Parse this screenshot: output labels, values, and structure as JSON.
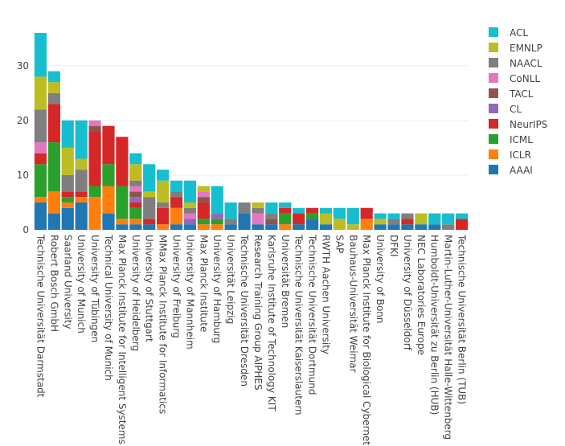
{
  "chart_data": {
    "type": "bar",
    "stacked": true,
    "title": "",
    "xlabel": "",
    "ylabel": "",
    "ylim": [
      0,
      37.9
    ],
    "yticks": [
      0,
      10,
      20,
      30
    ],
    "grid": true,
    "legend_position": "right",
    "categories": [
      "Technische Universität Darmstadt",
      "Robert Bosch GmbH",
      "Saarland University",
      "University of Munich",
      "University of Tübingen",
      "Technical University of Munich",
      "Max Planck Institute for Intelligent Systems",
      "University of Heidelberg",
      "University of Stuttgart",
      "MMax Planck Institute for Informatics",
      "University of Freiburg",
      "University of Mannheim",
      "Max Planck Institute",
      "University of Hamburg",
      "Universität Leipzig",
      "Technische Universität Dresden",
      "Research Training Group AIPHES",
      "Karlsruhe Institute of Technology KIT",
      "Universität Bremen",
      "Technische Universität Kaiserslautern",
      "Technische Universität Dortmund",
      "RWTH Aachen University",
      "SAP",
      "Bauhaus-Universität Weimar",
      "Max Planck Institute for Biological Cybernetics",
      "University of Bonn",
      "DFKI",
      "University of Düsseldorf",
      "NEC Laboratories Europe",
      "Humboldt-Universität zu Berlin (HUB)",
      "Martin-Luther-Universität Halle-Wittenberg",
      "Technische Universität Berlin (TUB)"
    ],
    "series": [
      {
        "name": "AAAI",
        "color": "#1f77b4",
        "values": [
          5,
          3,
          4,
          5,
          0,
          3,
          1,
          1,
          1,
          0,
          1,
          1,
          0,
          0,
          1,
          3,
          1,
          1,
          0,
          1,
          2,
          1,
          0,
          0,
          0,
          1,
          1,
          1,
          1,
          1,
          0,
          0
        ]
      },
      {
        "name": "ICLR",
        "color": "#ff7f0e",
        "values": [
          1,
          4,
          1,
          1,
          6,
          5,
          1,
          1,
          0,
          1,
          3,
          0,
          1,
          1,
          0,
          0,
          0,
          0,
          1,
          0,
          0,
          0,
          0,
          0,
          2,
          0,
          0,
          0,
          0,
          0,
          0,
          0
        ]
      },
      {
        "name": "ICML",
        "color": "#2ca02c",
        "values": [
          6,
          9,
          1,
          0,
          2,
          4,
          6,
          2,
          0,
          0,
          0,
          0,
          1,
          1,
          0,
          0,
          0,
          0,
          2,
          0,
          1,
          0,
          0,
          0,
          0,
          0,
          0,
          0,
          0,
          0,
          0,
          0
        ]
      },
      {
        "name": "NeurIPS",
        "color": "#d62728",
        "values": [
          2,
          7,
          1,
          1,
          10,
          7,
          9,
          1,
          1,
          3,
          2,
          0,
          3,
          0,
          0,
          0,
          0,
          0,
          1,
          2,
          1,
          0,
          0,
          0,
          2,
          0,
          0,
          1,
          0,
          0,
          0,
          2
        ]
      },
      {
        "name": "CL",
        "color": "#9467bd",
        "values": [
          0,
          0,
          0,
          0,
          0,
          0,
          0,
          1,
          0,
          0,
          0,
          1,
          0,
          1,
          0,
          0,
          0,
          0,
          0,
          0,
          0,
          0,
          0,
          0,
          0,
          0,
          0,
          0,
          0,
          0,
          0,
          0
        ]
      },
      {
        "name": "TACL",
        "color": "#8c564b",
        "values": [
          0,
          0,
          0,
          0,
          1,
          0,
          0,
          1,
          0,
          0,
          0,
          0,
          1,
          0,
          0,
          0,
          0,
          1,
          0,
          0,
          0,
          0,
          0,
          0,
          0,
          0,
          0,
          0,
          0,
          0,
          0,
          0
        ]
      },
      {
        "name": "CoNLL",
        "color": "#e377c2",
        "values": [
          2,
          0,
          0,
          0,
          1,
          0,
          0,
          1,
          0,
          0,
          0,
          1,
          1,
          0,
          0,
          0,
          2,
          0,
          0,
          0,
          0,
          0,
          0,
          0,
          0,
          0,
          0,
          0,
          0,
          0,
          0,
          0
        ]
      },
      {
        "name": "NAACL",
        "color": "#7f7f7f",
        "values": [
          6,
          2,
          3,
          4,
          0,
          0,
          0,
          1,
          4,
          1,
          1,
          1,
          0,
          0,
          1,
          2,
          1,
          1,
          0,
          0,
          0,
          0,
          0,
          0,
          0,
          0,
          1,
          1,
          0,
          0,
          1,
          0
        ]
      },
      {
        "name": "EMNLP",
        "color": "#bcbd22",
        "values": [
          6,
          2,
          5,
          2,
          0,
          0,
          0,
          3,
          1,
          4,
          0,
          1,
          1,
          0,
          0,
          0,
          1,
          0,
          0,
          0,
          0,
          2,
          2,
          1,
          0,
          1,
          0,
          0,
          2,
          0,
          0,
          0
        ]
      },
      {
        "name": "ACL",
        "color": "#17becf",
        "values": [
          8,
          2,
          5,
          7,
          0,
          0,
          0,
          2,
          5,
          2,
          2,
          4,
          0,
          5,
          3,
          0,
          0,
          2,
          1,
          1,
          0,
          1,
          2,
          3,
          0,
          1,
          1,
          0,
          0,
          2,
          2,
          1
        ]
      }
    ]
  }
}
